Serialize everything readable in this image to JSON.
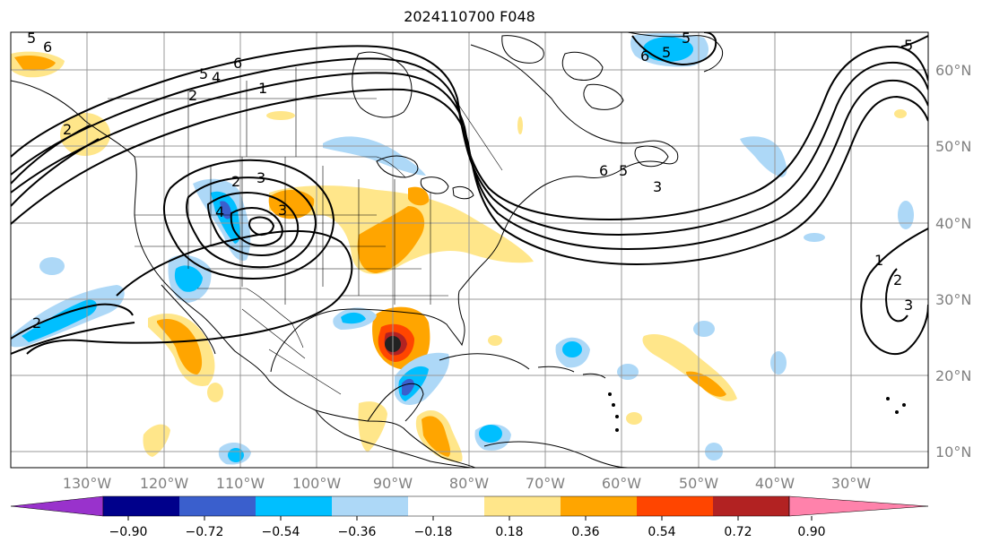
{
  "map": {
    "title": "2024110700 F048"
  },
  "longitude_labels": [
    "130°W",
    "120°W",
    "110°W",
    "100°W",
    "90°W",
    "80°W",
    "70°W",
    "60°W",
    "50°W",
    "40°W",
    "30°W"
  ],
  "latitude_labels": [
    "60°N",
    "50°N",
    "40°N",
    "30°N",
    "20°N",
    "10°N"
  ],
  "colorbar": {
    "colors": [
      "#9932cc",
      "#00008b",
      "#3a5fcd",
      "#00bfff",
      "#add8f7",
      "#ffffff",
      "#ffe68a",
      "#ffa500",
      "#ff4500",
      "#b22222",
      "#ff82ab"
    ],
    "tick_labels": [
      "−0.90",
      "−0.72",
      "−0.54",
      "−0.36",
      "−0.18",
      "0.18",
      "0.36",
      "0.54",
      "0.72",
      "0.90"
    ]
  },
  "contour_labels": [
    "5",
    "6",
    "5",
    "4",
    "6",
    "2",
    "1",
    "2",
    "3",
    "2",
    "3",
    "4",
    "5",
    "6",
    "5",
    "3",
    "1",
    "2",
    "3",
    "2",
    "5",
    "6",
    "5"
  ]
}
